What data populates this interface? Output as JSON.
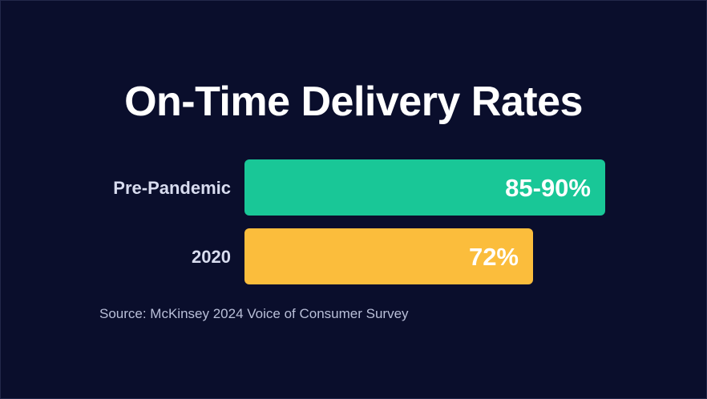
{
  "chart_data": {
    "type": "bar",
    "orientation": "horizontal",
    "title": "On-Time Delivery Rates",
    "xlabel": "",
    "ylabel": "",
    "xlim": [
      0,
      100
    ],
    "grid": false,
    "categories": [
      "Pre-Pandemic",
      "2020"
    ],
    "values": [
      90,
      72
    ],
    "value_labels": [
      "85-90%",
      "72%"
    ],
    "colors": [
      "#19c797",
      "#fbbd3c"
    ],
    "source": "Source: McKinsey 2024 Voice of Consumer Survey"
  },
  "colors": {
    "background": "#0a0e2c"
  }
}
